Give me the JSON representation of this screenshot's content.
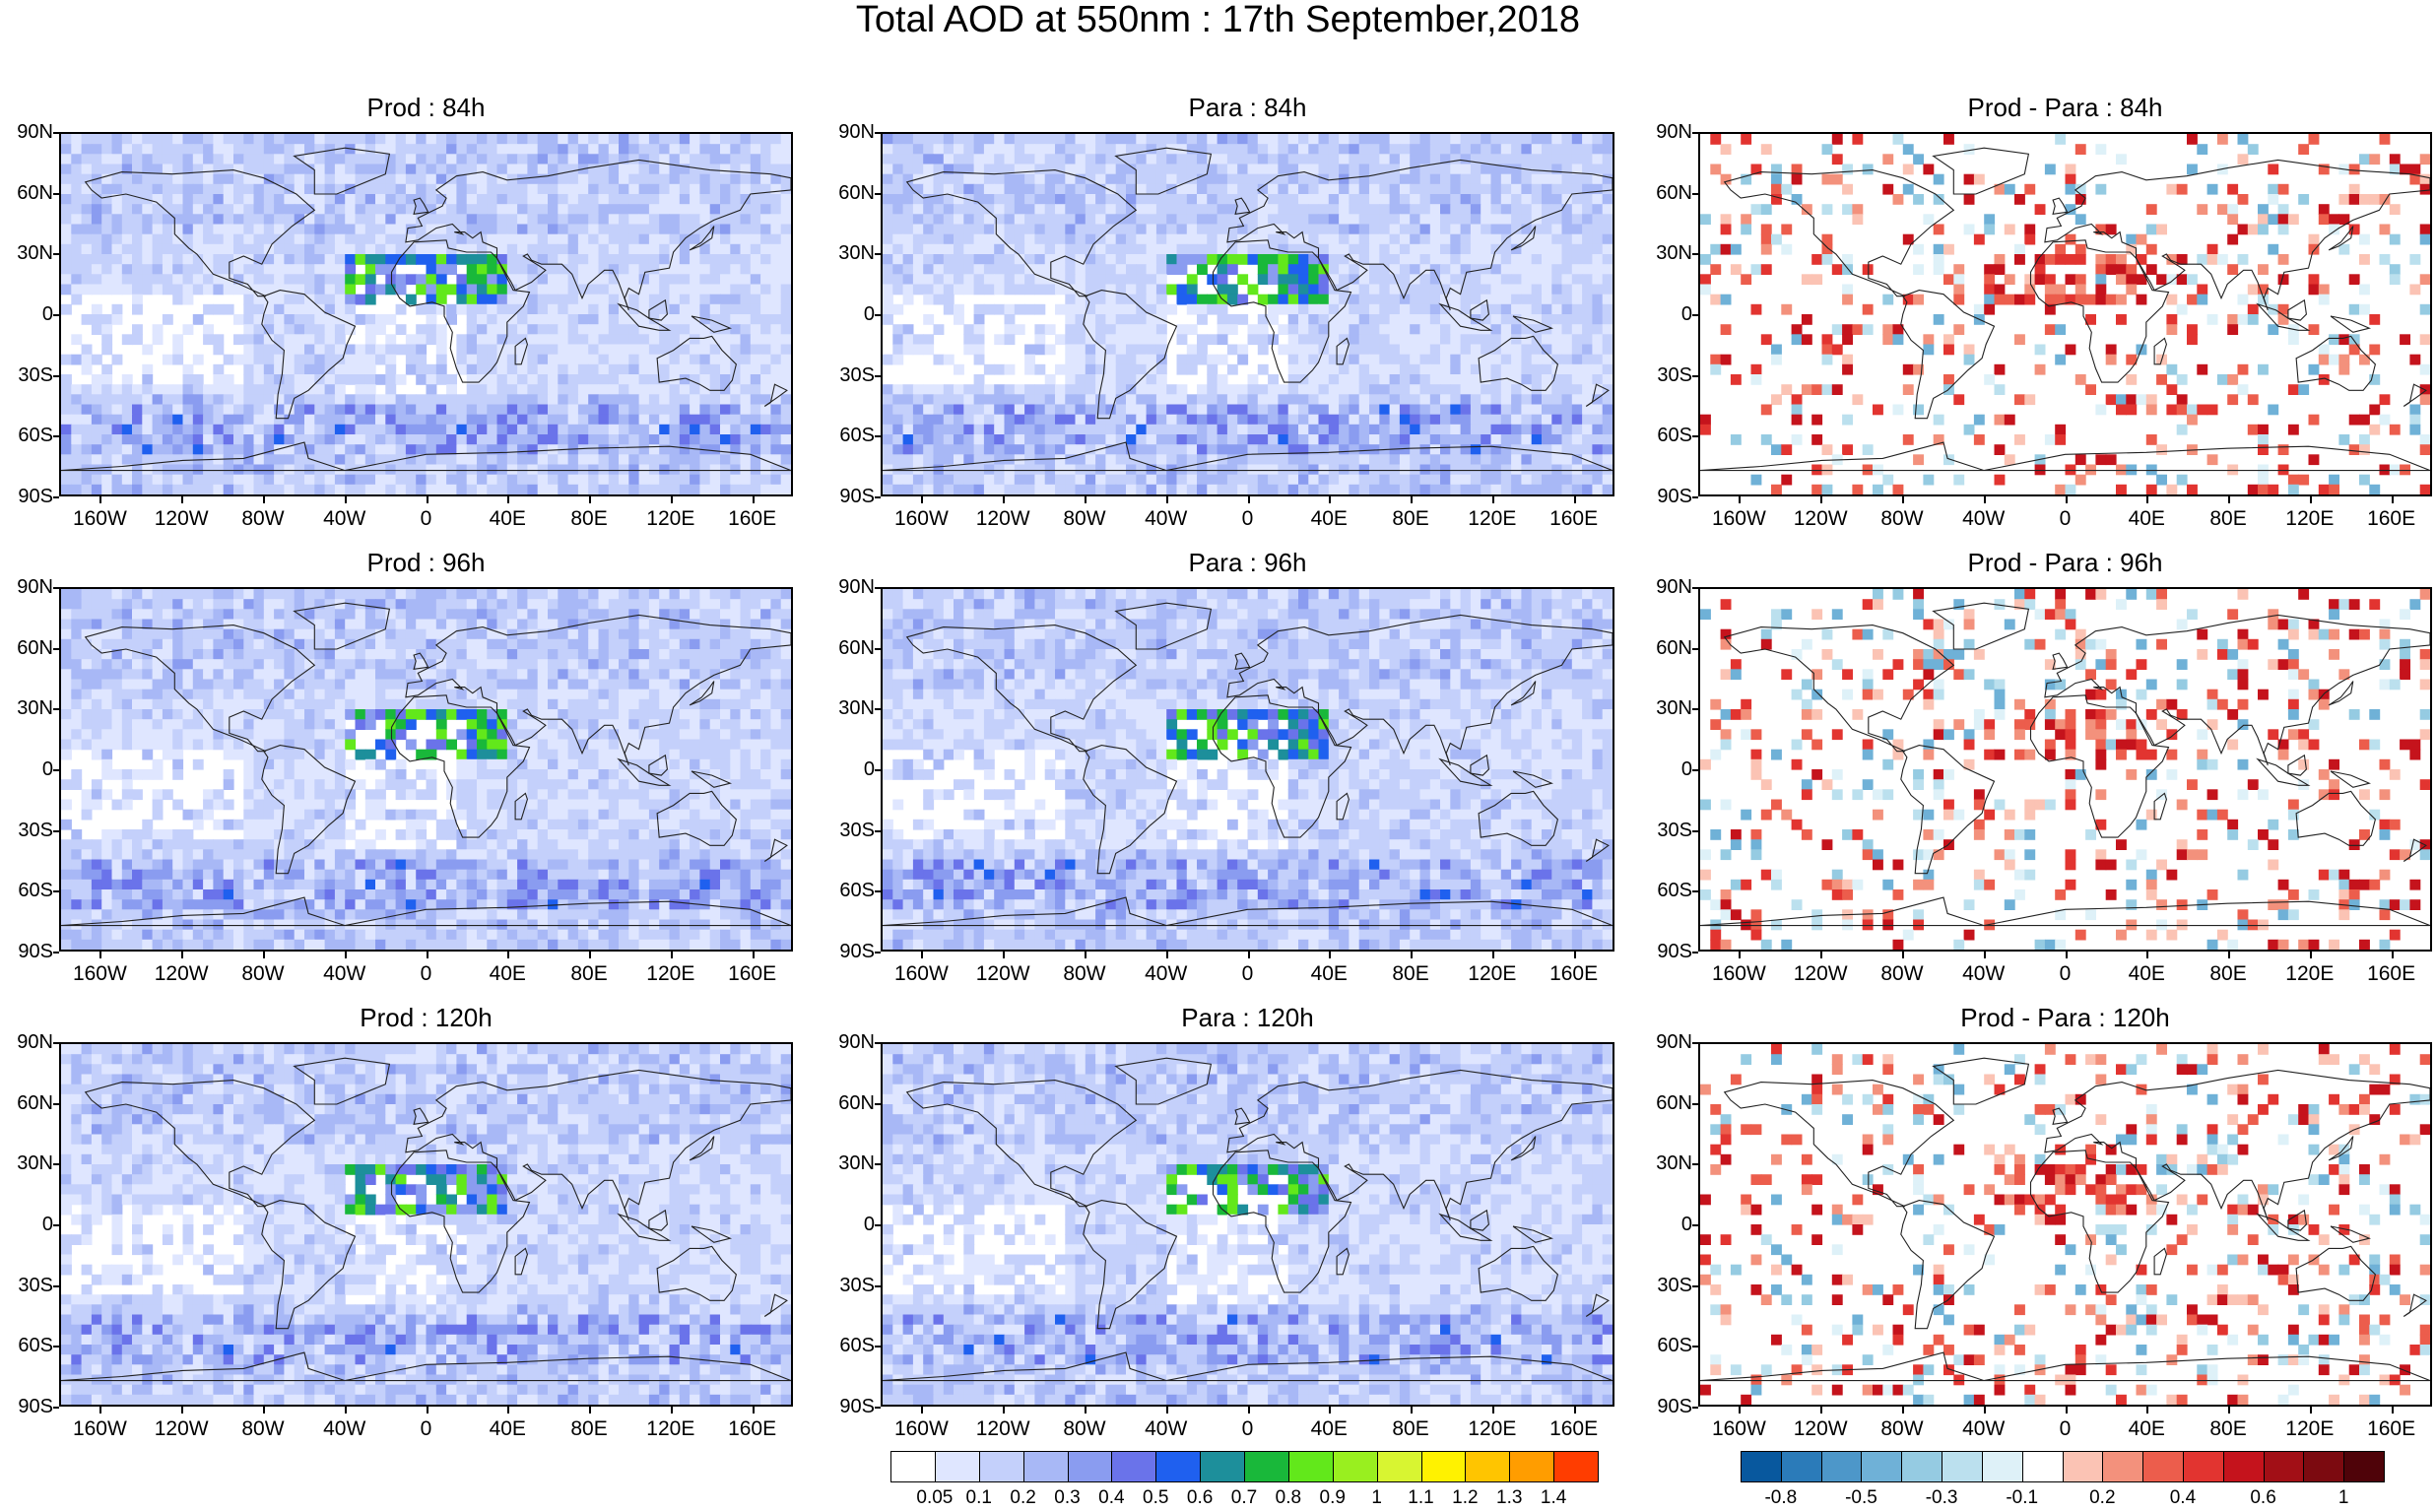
{
  "title": "Total AOD at 550nm : 17th September,2018",
  "lat_ticks": [
    "90N",
    "60N",
    "30N",
    "0",
    "30S",
    "60S",
    "90S"
  ],
  "lon_ticks": [
    "160W",
    "120W",
    "80W",
    "40W",
    "0",
    "40E",
    "80E",
    "120E",
    "160E"
  ],
  "panels": [
    {
      "title": "Prod : 84h",
      "kind": "aod",
      "seed": 11
    },
    {
      "title": "Para : 84h",
      "kind": "aod",
      "seed": 23
    },
    {
      "title": "Prod - Para : 84h",
      "kind": "diff",
      "seed": 37
    },
    {
      "title": "Prod : 96h",
      "kind": "aod",
      "seed": 41
    },
    {
      "title": "Para : 96h",
      "kind": "aod",
      "seed": 53
    },
    {
      "title": "Prod - Para : 96h",
      "kind": "diff",
      "seed": 67
    },
    {
      "title": "Prod : 120h",
      "kind": "aod",
      "seed": 71
    },
    {
      "title": "Para : 120h",
      "kind": "aod",
      "seed": 83
    },
    {
      "title": "Prod - Para : 120h",
      "kind": "diff",
      "seed": 97
    }
  ],
  "colorbar_aod": {
    "labels": [
      "0.05",
      "0.1",
      "0.2",
      "0.3",
      "0.4",
      "0.5",
      "0.6",
      "0.7",
      "0.8",
      "0.9",
      "1",
      "1.1",
      "1.2",
      "1.3",
      "1.4"
    ],
    "colors": [
      "#ffffff",
      "#dfe6ff",
      "#c4d0fb",
      "#a8b8f6",
      "#8a9cf0",
      "#6a73ea",
      "#1f60ef",
      "#1d8f9b",
      "#19b83a",
      "#62e81b",
      "#99ef1f",
      "#d8f531",
      "#fff200",
      "#ffc500",
      "#ff9d00",
      "#ff3d00"
    ]
  },
  "colorbar_diff": {
    "labels": [
      "-0.8",
      "-0.5",
      "-0.3",
      "-0.1",
      "0.2",
      "0.4",
      "0.6",
      "1"
    ],
    "colors": [
      "#08589e",
      "#2b7bb9",
      "#4d97c9",
      "#6fb1d7",
      "#95cbe2",
      "#bbe0ee",
      "#def1f8",
      "#ffffff",
      "#fbc3b4",
      "#f3917c",
      "#ec5d4c",
      "#e23430",
      "#c5131c",
      "#a20f16",
      "#7c0a10",
      "#4f0309"
    ]
  }
}
